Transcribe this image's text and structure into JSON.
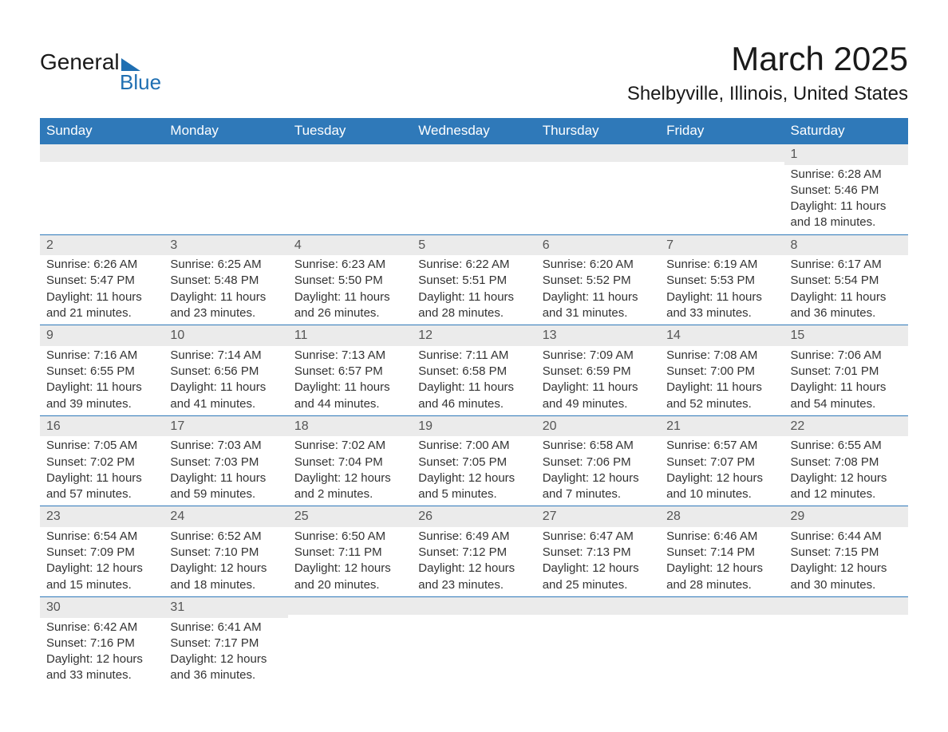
{
  "logo": {
    "top": "General",
    "bottom": "Blue"
  },
  "title": "March 2025",
  "location": "Shelbyville, Illinois, United States",
  "colors": {
    "header_bg": "#2f79b9",
    "header_text": "#ffffff",
    "daynum_bg": "#ebebeb",
    "daynum_text": "#555555",
    "body_text": "#333333",
    "row_border": "#2f79b9",
    "logo_accent": "#1f6fb2",
    "page_bg": "#ffffff"
  },
  "typography": {
    "title_fontsize_pt": 32,
    "location_fontsize_pt": 18,
    "header_fontsize_pt": 13,
    "cell_fontsize_pt": 11,
    "font_family": "Arial"
  },
  "calendar": {
    "type": "table",
    "columns": [
      "Sunday",
      "Monday",
      "Tuesday",
      "Wednesday",
      "Thursday",
      "Friday",
      "Saturday"
    ],
    "weeks": [
      [
        null,
        null,
        null,
        null,
        null,
        null,
        {
          "n": "1",
          "sr": "Sunrise: 6:28 AM",
          "ss": "Sunset: 5:46 PM",
          "d1": "Daylight: 11 hours",
          "d2": "and 18 minutes."
        }
      ],
      [
        {
          "n": "2",
          "sr": "Sunrise: 6:26 AM",
          "ss": "Sunset: 5:47 PM",
          "d1": "Daylight: 11 hours",
          "d2": "and 21 minutes."
        },
        {
          "n": "3",
          "sr": "Sunrise: 6:25 AM",
          "ss": "Sunset: 5:48 PM",
          "d1": "Daylight: 11 hours",
          "d2": "and 23 minutes."
        },
        {
          "n": "4",
          "sr": "Sunrise: 6:23 AM",
          "ss": "Sunset: 5:50 PM",
          "d1": "Daylight: 11 hours",
          "d2": "and 26 minutes."
        },
        {
          "n": "5",
          "sr": "Sunrise: 6:22 AM",
          "ss": "Sunset: 5:51 PM",
          "d1": "Daylight: 11 hours",
          "d2": "and 28 minutes."
        },
        {
          "n": "6",
          "sr": "Sunrise: 6:20 AM",
          "ss": "Sunset: 5:52 PM",
          "d1": "Daylight: 11 hours",
          "d2": "and 31 minutes."
        },
        {
          "n": "7",
          "sr": "Sunrise: 6:19 AM",
          "ss": "Sunset: 5:53 PM",
          "d1": "Daylight: 11 hours",
          "d2": "and 33 minutes."
        },
        {
          "n": "8",
          "sr": "Sunrise: 6:17 AM",
          "ss": "Sunset: 5:54 PM",
          "d1": "Daylight: 11 hours",
          "d2": "and 36 minutes."
        }
      ],
      [
        {
          "n": "9",
          "sr": "Sunrise: 7:16 AM",
          "ss": "Sunset: 6:55 PM",
          "d1": "Daylight: 11 hours",
          "d2": "and 39 minutes."
        },
        {
          "n": "10",
          "sr": "Sunrise: 7:14 AM",
          "ss": "Sunset: 6:56 PM",
          "d1": "Daylight: 11 hours",
          "d2": "and 41 minutes."
        },
        {
          "n": "11",
          "sr": "Sunrise: 7:13 AM",
          "ss": "Sunset: 6:57 PM",
          "d1": "Daylight: 11 hours",
          "d2": "and 44 minutes."
        },
        {
          "n": "12",
          "sr": "Sunrise: 7:11 AM",
          "ss": "Sunset: 6:58 PM",
          "d1": "Daylight: 11 hours",
          "d2": "and 46 minutes."
        },
        {
          "n": "13",
          "sr": "Sunrise: 7:09 AM",
          "ss": "Sunset: 6:59 PM",
          "d1": "Daylight: 11 hours",
          "d2": "and 49 minutes."
        },
        {
          "n": "14",
          "sr": "Sunrise: 7:08 AM",
          "ss": "Sunset: 7:00 PM",
          "d1": "Daylight: 11 hours",
          "d2": "and 52 minutes."
        },
        {
          "n": "15",
          "sr": "Sunrise: 7:06 AM",
          "ss": "Sunset: 7:01 PM",
          "d1": "Daylight: 11 hours",
          "d2": "and 54 minutes."
        }
      ],
      [
        {
          "n": "16",
          "sr": "Sunrise: 7:05 AM",
          "ss": "Sunset: 7:02 PM",
          "d1": "Daylight: 11 hours",
          "d2": "and 57 minutes."
        },
        {
          "n": "17",
          "sr": "Sunrise: 7:03 AM",
          "ss": "Sunset: 7:03 PM",
          "d1": "Daylight: 11 hours",
          "d2": "and 59 minutes."
        },
        {
          "n": "18",
          "sr": "Sunrise: 7:02 AM",
          "ss": "Sunset: 7:04 PM",
          "d1": "Daylight: 12 hours",
          "d2": "and 2 minutes."
        },
        {
          "n": "19",
          "sr": "Sunrise: 7:00 AM",
          "ss": "Sunset: 7:05 PM",
          "d1": "Daylight: 12 hours",
          "d2": "and 5 minutes."
        },
        {
          "n": "20",
          "sr": "Sunrise: 6:58 AM",
          "ss": "Sunset: 7:06 PM",
          "d1": "Daylight: 12 hours",
          "d2": "and 7 minutes."
        },
        {
          "n": "21",
          "sr": "Sunrise: 6:57 AM",
          "ss": "Sunset: 7:07 PM",
          "d1": "Daylight: 12 hours",
          "d2": "and 10 minutes."
        },
        {
          "n": "22",
          "sr": "Sunrise: 6:55 AM",
          "ss": "Sunset: 7:08 PM",
          "d1": "Daylight: 12 hours",
          "d2": "and 12 minutes."
        }
      ],
      [
        {
          "n": "23",
          "sr": "Sunrise: 6:54 AM",
          "ss": "Sunset: 7:09 PM",
          "d1": "Daylight: 12 hours",
          "d2": "and 15 minutes."
        },
        {
          "n": "24",
          "sr": "Sunrise: 6:52 AM",
          "ss": "Sunset: 7:10 PM",
          "d1": "Daylight: 12 hours",
          "d2": "and 18 minutes."
        },
        {
          "n": "25",
          "sr": "Sunrise: 6:50 AM",
          "ss": "Sunset: 7:11 PM",
          "d1": "Daylight: 12 hours",
          "d2": "and 20 minutes."
        },
        {
          "n": "26",
          "sr": "Sunrise: 6:49 AM",
          "ss": "Sunset: 7:12 PM",
          "d1": "Daylight: 12 hours",
          "d2": "and 23 minutes."
        },
        {
          "n": "27",
          "sr": "Sunrise: 6:47 AM",
          "ss": "Sunset: 7:13 PM",
          "d1": "Daylight: 12 hours",
          "d2": "and 25 minutes."
        },
        {
          "n": "28",
          "sr": "Sunrise: 6:46 AM",
          "ss": "Sunset: 7:14 PM",
          "d1": "Daylight: 12 hours",
          "d2": "and 28 minutes."
        },
        {
          "n": "29",
          "sr": "Sunrise: 6:44 AM",
          "ss": "Sunset: 7:15 PM",
          "d1": "Daylight: 12 hours",
          "d2": "and 30 minutes."
        }
      ],
      [
        {
          "n": "30",
          "sr": "Sunrise: 6:42 AM",
          "ss": "Sunset: 7:16 PM",
          "d1": "Daylight: 12 hours",
          "d2": "and 33 minutes."
        },
        {
          "n": "31",
          "sr": "Sunrise: 6:41 AM",
          "ss": "Sunset: 7:17 PM",
          "d1": "Daylight: 12 hours",
          "d2": "and 36 minutes."
        },
        null,
        null,
        null,
        null,
        null
      ]
    ]
  }
}
